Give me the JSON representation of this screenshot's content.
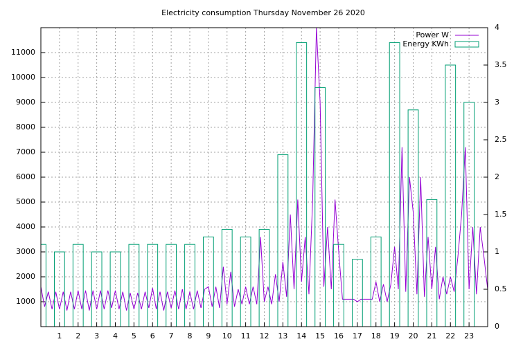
{
  "chart_data": {
    "type": "line",
    "title": "Electricity consumption Thursday November 26 2020",
    "xlim": [
      0,
      24
    ],
    "xticks": [
      1,
      2,
      3,
      4,
      5,
      6,
      7,
      8,
      9,
      10,
      11,
      12,
      13,
      14,
      15,
      16,
      17,
      18,
      19,
      20,
      21,
      22,
      23
    ],
    "ylim": [
      0,
      12000
    ],
    "yticks": [
      1000,
      2000,
      3000,
      4000,
      5000,
      6000,
      7000,
      8000,
      9000,
      10000,
      11000
    ],
    "y2lim": [
      0,
      4
    ],
    "y2ticks": [
      0,
      0.5,
      1,
      1.5,
      2,
      2.5,
      3,
      3.5,
      4
    ],
    "grid": true,
    "legend": "top-right",
    "series": [
      {
        "name": "Power W",
        "type": "line",
        "color": "#9400d3",
        "x": [
          0,
          0.2,
          0.4,
          0.6,
          0.8,
          1,
          1.2,
          1.4,
          1.6,
          1.8,
          2,
          2.2,
          2.4,
          2.6,
          2.8,
          3,
          3.2,
          3.4,
          3.6,
          3.8,
          4,
          4.2,
          4.4,
          4.6,
          4.8,
          5,
          5.2,
          5.4,
          5.6,
          5.8,
          6,
          6.2,
          6.4,
          6.6,
          6.8,
          7,
          7.2,
          7.4,
          7.6,
          7.8,
          8,
          8.2,
          8.4,
          8.6,
          8.8,
          9,
          9.2,
          9.4,
          9.6,
          9.8,
          10,
          10.2,
          10.4,
          10.6,
          10.8,
          11,
          11.2,
          11.4,
          11.6,
          11.8,
          12,
          12.2,
          12.4,
          12.6,
          12.8,
          13,
          13.2,
          13.4,
          13.6,
          13.8,
          14,
          14.2,
          14.4,
          14.6,
          14.8,
          15,
          15.2,
          15.4,
          15.6,
          15.8,
          16,
          16.2,
          16.4,
          16.6,
          16.8,
          17,
          17.2,
          17.4,
          17.6,
          17.8,
          18,
          18.2,
          18.4,
          18.6,
          18.8,
          19,
          19.2,
          19.4,
          19.6,
          19.8,
          20,
          20.2,
          20.4,
          20.6,
          20.8,
          21,
          21.2,
          21.4,
          21.6,
          21.8,
          22,
          22.2,
          22.4,
          22.6,
          22.8,
          23,
          23.2,
          23.4,
          23.6,
          23.8,
          24
        ],
        "values": [
          1600,
          800,
          1400,
          700,
          1400,
          700,
          1400,
          650,
          1400,
          700,
          1450,
          700,
          1450,
          650,
          1450,
          700,
          1450,
          700,
          1450,
          750,
          1450,
          700,
          1400,
          650,
          1350,
          700,
          1350,
          700,
          1400,
          750,
          1550,
          700,
          1400,
          650,
          1400,
          750,
          1450,
          700,
          1500,
          700,
          1400,
          700,
          1450,
          750,
          1500,
          1600,
          800,
          1600,
          750,
          2400,
          900,
          2200,
          800,
          1500,
          900,
          1600,
          900,
          1600,
          900,
          3600,
          1000,
          1600,
          900,
          2100,
          1000,
          2600,
          1200,
          4500,
          1500,
          5100,
          1800,
          3600,
          1300,
          5100,
          12000,
          9000,
          1600,
          4000,
          1500,
          5100,
          3000,
          1100,
          1100,
          1100,
          1100,
          1000,
          1100,
          1100,
          1100,
          1100,
          1800,
          1000,
          1700,
          1000,
          1700,
          3200,
          1500,
          7200,
          1400,
          6000,
          4600,
          1300,
          6000,
          1200,
          3600,
          1500,
          3200,
          1100,
          2000,
          1300,
          2000,
          1400,
          2800,
          4500,
          7200,
          1500,
          4000,
          1300,
          4000,
          2800,
          1500
        ]
      },
      {
        "name": "Energy KWh",
        "type": "bar",
        "axis": "y2",
        "color": "#009e73",
        "x": [
          0,
          1,
          2,
          3,
          4,
          5,
          6,
          7,
          8,
          9,
          10,
          11,
          12,
          13,
          14,
          15,
          16,
          17,
          18,
          19,
          20,
          21,
          22,
          23
        ],
        "values": [
          1.1,
          1.0,
          1.1,
          1.0,
          1.0,
          1.1,
          1.1,
          1.1,
          1.1,
          1.2,
          1.3,
          1.2,
          1.3,
          2.3,
          3.8,
          3.2,
          1.1,
          0.9,
          1.2,
          3.8,
          2.9,
          1.7,
          3.5,
          3.0
        ]
      }
    ]
  }
}
